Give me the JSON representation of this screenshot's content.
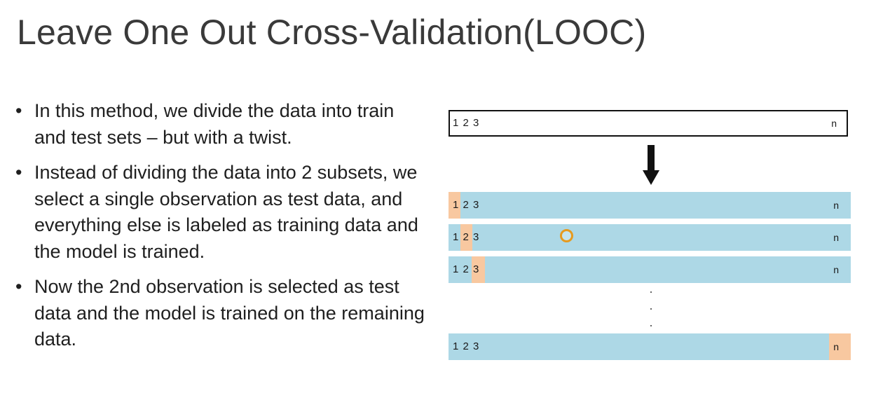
{
  "slide": {
    "title": "Leave One Out Cross-Validation(LOOC)",
    "bullets": [
      "In this method, we divide the data into train and test sets – but with a twist.",
      "Instead of dividing the data into 2 subsets, we select a single observation as test data, and everything else is labeled as training data and the model is trained.",
      "Now the 2nd observation is selected as test data and the model is trained on the remaining data."
    ],
    "bullet_char": "•"
  },
  "diagram": {
    "top_bar": {
      "numbers": "1 2 3",
      "last": "n"
    },
    "rows": [
      {
        "numbers": "1 2 3",
        "last": "n",
        "test_item": "1"
      },
      {
        "numbers": "1 2 3",
        "last": "n",
        "test_item": "2"
      },
      {
        "numbers": "1 2 3",
        "last": "n",
        "test_item": "3"
      },
      {
        "numbers": "1 2 3",
        "last": "n",
        "test_item": "n"
      }
    ],
    "colors": {
      "train": "#add8e6",
      "test": "#f8c8a0",
      "border": "#111111",
      "arrow": "#111111"
    }
  }
}
